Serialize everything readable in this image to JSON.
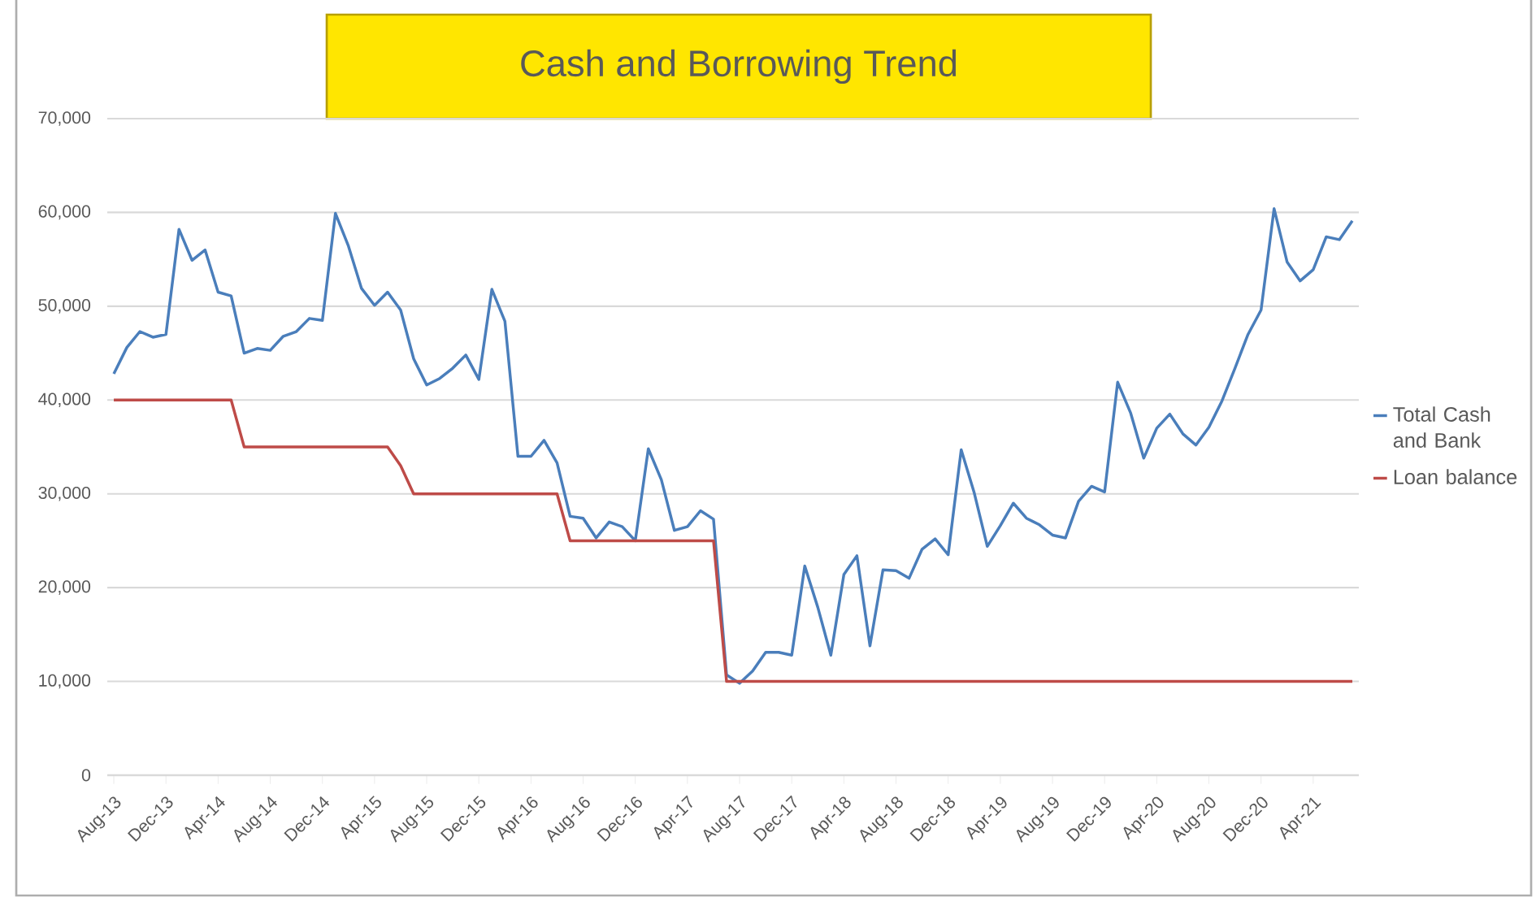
{
  "chart_data": {
    "type": "line",
    "title": "Cash and Borrowing Trend",
    "categories": [
      "Aug-13",
      null,
      null,
      null,
      "Dec-13",
      null,
      null,
      null,
      "Apr-14",
      null,
      null,
      null,
      "Aug-14",
      null,
      null,
      null,
      "Dec-14",
      null,
      null,
      null,
      "Apr-15",
      null,
      null,
      null,
      "Aug-15",
      null,
      null,
      null,
      "Dec-15",
      null,
      null,
      null,
      "Apr-16",
      null,
      null,
      null,
      "Aug-16",
      null,
      null,
      null,
      "Dec-16",
      null,
      null,
      null,
      "Apr-17",
      null,
      null,
      null,
      "Aug-17",
      null,
      null,
      null,
      "Dec-17",
      null,
      null,
      null,
      "Apr-18",
      null,
      null,
      null,
      "Aug-18",
      null,
      null,
      null,
      "Dec-18",
      null,
      null,
      null,
      "Apr-19",
      null,
      null,
      null,
      "Aug-19",
      null,
      null,
      null,
      "Dec-19",
      null,
      null,
      null,
      "Apr-20",
      null,
      null,
      null,
      "Aug-20",
      null,
      null,
      null,
      "Dec-20",
      null,
      null,
      null,
      "Apr-21",
      null,
      null,
      null
    ],
    "series": [
      {
        "name": "Total Cash and Bank",
        "color": "#4a7ebb",
        "values": [
          42800,
          45600,
          47300,
          46700,
          47000,
          58200,
          54900,
          56000,
          51500,
          51100,
          45000,
          45500,
          45300,
          46800,
          47300,
          48700,
          48500,
          59900,
          56400,
          51900,
          50100,
          51500,
          49600,
          44400,
          41600,
          42300,
          43400,
          44800,
          42200,
          51800,
          48400,
          34000,
          34000,
          35700,
          33300,
          27600,
          27400,
          25300,
          27000,
          26500,
          25000,
          34800,
          31500,
          26100,
          26500,
          28200,
          27300,
          10700,
          9800,
          11100,
          13100,
          13100,
          12800,
          22300,
          17900,
          12800,
          21400,
          23400,
          13800,
          21900,
          21800,
          21000,
          24100,
          25200,
          23500,
          34700,
          30100,
          24400,
          26600,
          29000,
          27400,
          26700,
          25600,
          25300,
          29200,
          30800,
          30200,
          41900,
          38600,
          33800,
          37000,
          38500,
          36400,
          35200,
          37100,
          39900,
          43400,
          47000,
          49600,
          60400,
          54700,
          52700,
          53900,
          57400,
          57100,
          59100
        ]
      },
      {
        "name": "Loan balance",
        "color": "#be4b48",
        "values": [
          40000,
          40000,
          40000,
          40000,
          40000,
          40000,
          40000,
          40000,
          40000,
          40000,
          35000,
          35000,
          35000,
          35000,
          35000,
          35000,
          35000,
          35000,
          35000,
          35000,
          35000,
          35000,
          33000,
          30000,
          30000,
          30000,
          30000,
          30000,
          30000,
          30000,
          30000,
          30000,
          30000,
          30000,
          30000,
          25000,
          25000,
          25000,
          25000,
          25000,
          25000,
          25000,
          25000,
          25000,
          25000,
          25000,
          25000,
          10000,
          10000,
          10000,
          10000,
          10000,
          10000,
          10000,
          10000,
          10000,
          10000,
          10000,
          10000,
          10000,
          10000,
          10000,
          10000,
          10000,
          10000,
          10000,
          10000,
          10000,
          10000,
          10000,
          10000,
          10000,
          10000,
          10000,
          10000,
          10000,
          10000,
          10000,
          10000,
          10000,
          10000,
          10000,
          10000,
          10000,
          10000,
          10000,
          10000,
          10000,
          10000,
          10000,
          10000,
          10000,
          10000,
          10000,
          10000,
          10000
        ]
      }
    ],
    "ylim": [
      0,
      70000
    ],
    "yticks": [
      0,
      {
        "value": 10000,
        "label": "10,000"
      },
      {
        "value": 20000,
        "label": "20,000"
      },
      {
        "value": 30000,
        "label": "30,000"
      },
      {
        "value": 40000,
        "label": "40,000"
      },
      {
        "value": 50000,
        "label": "50,000"
      },
      {
        "value": 60000,
        "label": "60,000"
      },
      {
        "value": 70000,
        "label": "70,000"
      }
    ],
    "grid": "y",
    "legend": "right"
  }
}
